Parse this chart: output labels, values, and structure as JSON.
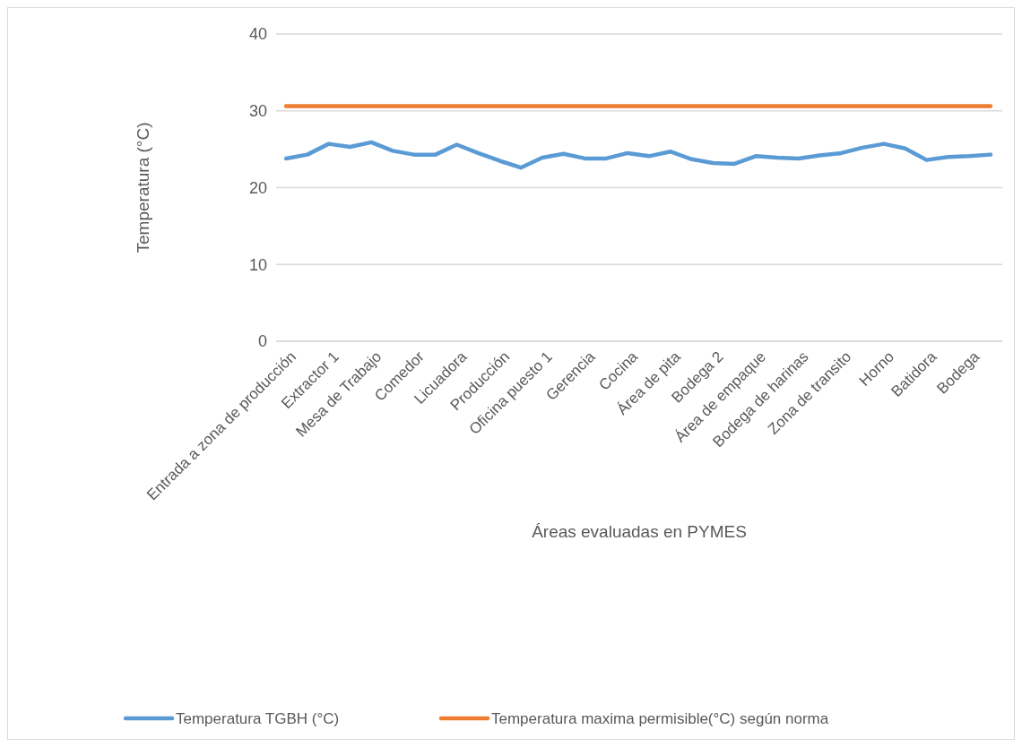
{
  "chart_data": {
    "type": "line",
    "xlabel": "Áreas evaluadas en PYMES",
    "ylabel": "Temperatura (°C)",
    "categories": [
      "Entrada a zona de producción",
      null,
      "Extractor 1",
      null,
      "Mesa de Trabajo",
      null,
      "Comedor",
      null,
      "Licuadora",
      null,
      "Producción",
      null,
      "Oficina puesto 1",
      null,
      "Gerencia",
      null,
      "Cocina",
      null,
      "Área de pita",
      null,
      "Bodega 2",
      null,
      "Área de empaque",
      null,
      "Bodega de harinas",
      null,
      "Zona de transito",
      null,
      "Horno",
      null,
      "Batidora",
      null,
      "Bodega",
      null
    ],
    "series": [
      {
        "name": "Temperatura TGBH (°C)",
        "color": "#5b9bd5",
        "values": [
          23.8,
          24.3,
          25.7,
          25.3,
          25.9,
          24.8,
          24.3,
          24.3,
          25.6,
          24.5,
          23.5,
          22.6,
          23.9,
          24.4,
          23.8,
          23.8,
          24.5,
          24.1,
          24.7,
          23.7,
          23.2,
          23.1,
          24.1,
          23.9,
          23.8,
          24.2,
          24.5,
          25.2,
          25.7,
          25.1,
          23.6,
          24.0,
          24.1,
          24.3
        ]
      },
      {
        "name": "Temperatura maxima permisible(°C) según norma",
        "color": "#ed7d31",
        "values": [
          30.6,
          30.6,
          30.6,
          30.6,
          30.6,
          30.6,
          30.6,
          30.6,
          30.6,
          30.6,
          30.6,
          30.6,
          30.6,
          30.6,
          30.6,
          30.6,
          30.6,
          30.6,
          30.6,
          30.6,
          30.6,
          30.6,
          30.6,
          30.6,
          30.6,
          30.6,
          30.6,
          30.6,
          30.6,
          30.6,
          30.6,
          30.6,
          30.6,
          30.6
        ]
      }
    ],
    "ylim": [
      0,
      40
    ],
    "yticks": [
      0,
      10,
      20,
      30,
      40
    ],
    "grid": "y",
    "legend": "bottom",
    "marker": "none",
    "line_style": "solid"
  }
}
